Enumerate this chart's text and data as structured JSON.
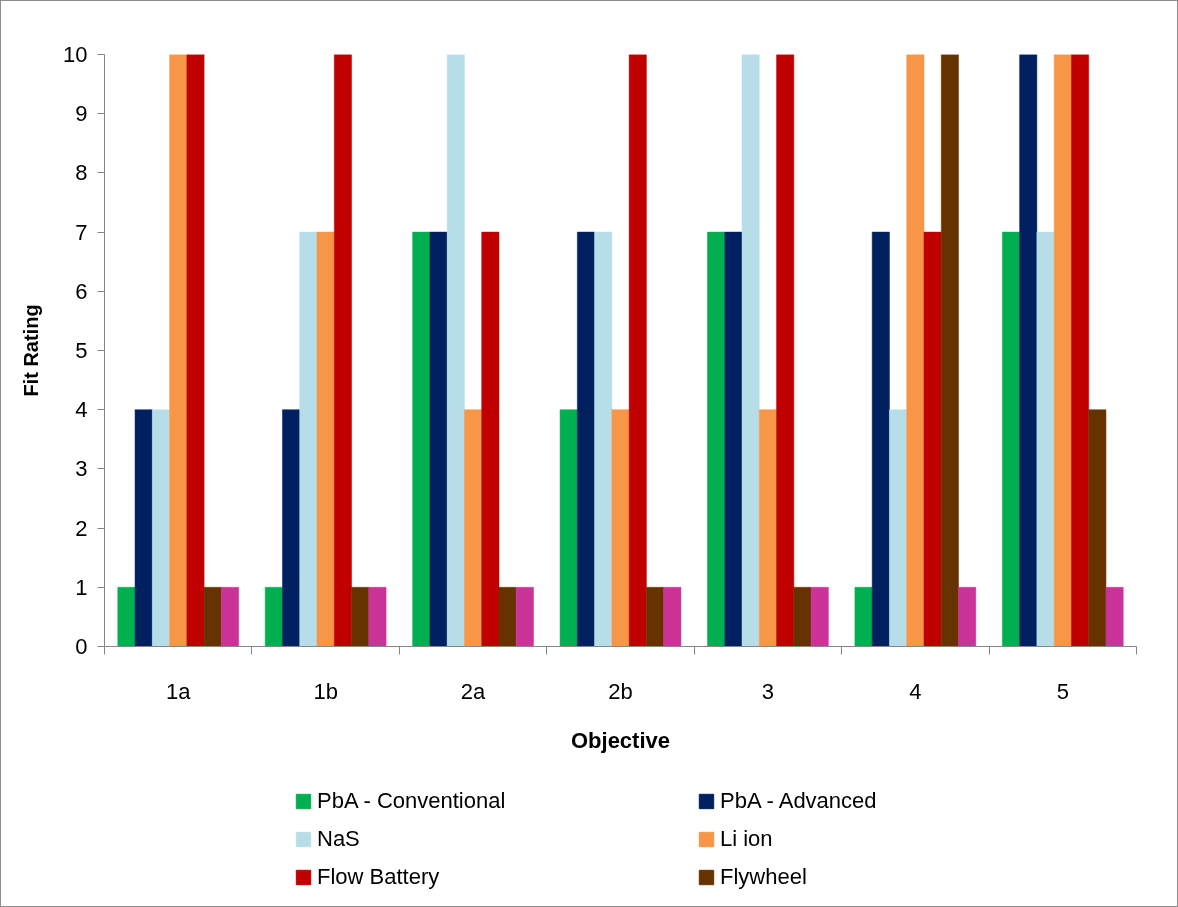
{
  "chart_data": {
    "type": "bar",
    "xlabel": "Objective",
    "ylabel": "Fit Rating",
    "categories": [
      "1a",
      "1b",
      "2a",
      "2b",
      "3",
      "4",
      "5"
    ],
    "ylim": [
      0,
      10
    ],
    "yticks": [
      0,
      1,
      2,
      3,
      4,
      5,
      6,
      7,
      8,
      9,
      10
    ],
    "legend": "bottom",
    "series": [
      {
        "name": "PbA - Conventional",
        "color": "#00b050",
        "values": [
          1,
          1,
          7,
          4,
          7,
          1,
          7
        ]
      },
      {
        "name": "PbA - Advanced",
        "color": "#002060",
        "values": [
          4,
          4,
          7,
          7,
          7,
          7,
          10
        ]
      },
      {
        "name": "NaS",
        "color": "#b7dee8",
        "values": [
          4,
          7,
          10,
          7,
          10,
          4,
          7
        ]
      },
      {
        "name": "Li ion",
        "color": "#f79646",
        "values": [
          10,
          7,
          4,
          4,
          4,
          10,
          10
        ]
      },
      {
        "name": "Flow Battery",
        "color": "#c00000",
        "values": [
          10,
          10,
          7,
          10,
          10,
          7,
          10
        ]
      },
      {
        "name": "Flywheel",
        "color": "#663300",
        "values": [
          1,
          1,
          1,
          1,
          1,
          10,
          4
        ]
      },
      {
        "color": "#cc3399",
        "values": [
          1,
          1,
          1,
          1,
          1,
          1,
          1
        ]
      }
    ]
  }
}
